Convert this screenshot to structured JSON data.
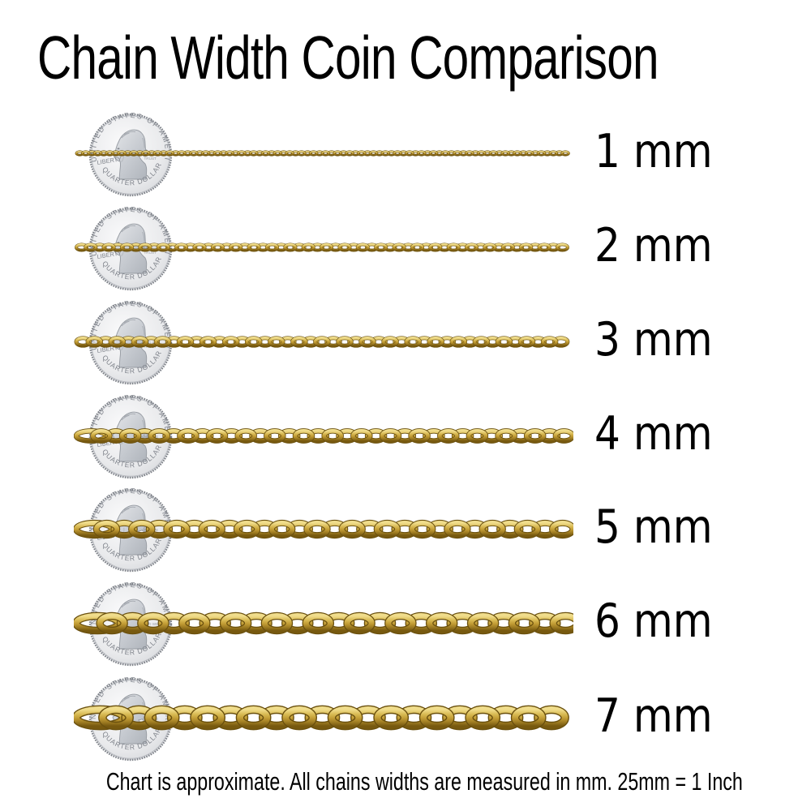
{
  "title": "Chain Width Coin Comparison",
  "footer": "Chart is approximate. All chains widths are measured in mm.  25mm = 1 Inch",
  "rows": [
    {
      "label": "1 mm",
      "mm": 1
    },
    {
      "label": "2 mm",
      "mm": 2
    },
    {
      "label": "3 mm",
      "mm": 3
    },
    {
      "label": "4 mm",
      "mm": 4
    },
    {
      "label": "5 mm",
      "mm": 5
    },
    {
      "label": "6 mm",
      "mm": 6
    },
    {
      "label": "7 mm",
      "mm": 7
    }
  ],
  "coin": {
    "top_text": "UNITED STATES OF AMERICA",
    "left_text": "LIBERTY",
    "right_text_line1": "GOD WE",
    "right_text_line2": "TRUST",
    "bottom_text": "QUARTER DOLLAR"
  },
  "colors": {
    "gold_highlight": "#f0dd8c",
    "gold_light": "#d8b952",
    "gold_mid": "#c09a33",
    "gold_dark": "#9a7820",
    "gold_deep": "#77590f",
    "gold_outline": "#6a500e",
    "coin_face_light": "#fbfbfc",
    "coin_face_dark": "#d3d5d9",
    "coin_text": "#7e828a",
    "text": "#000000"
  },
  "chart_data": {
    "type": "table",
    "title": "Chain Width Coin Comparison",
    "categories": [
      "1 mm",
      "2 mm",
      "3 mm",
      "4 mm",
      "5 mm",
      "6 mm",
      "7 mm"
    ],
    "values": [
      1,
      2,
      3,
      4,
      5,
      6,
      7
    ],
    "unit": "mm",
    "series": [
      {
        "name": "chain_width_mm",
        "values": [
          1,
          2,
          3,
          4,
          5,
          6,
          7
        ]
      }
    ],
    "reference_object": "QUARTER DOLLAR coin",
    "note": "Chart is approximate. All chains widths are measured in mm.  25mm = 1 Inch",
    "legend_position": "right-of-rows",
    "grid": false
  }
}
